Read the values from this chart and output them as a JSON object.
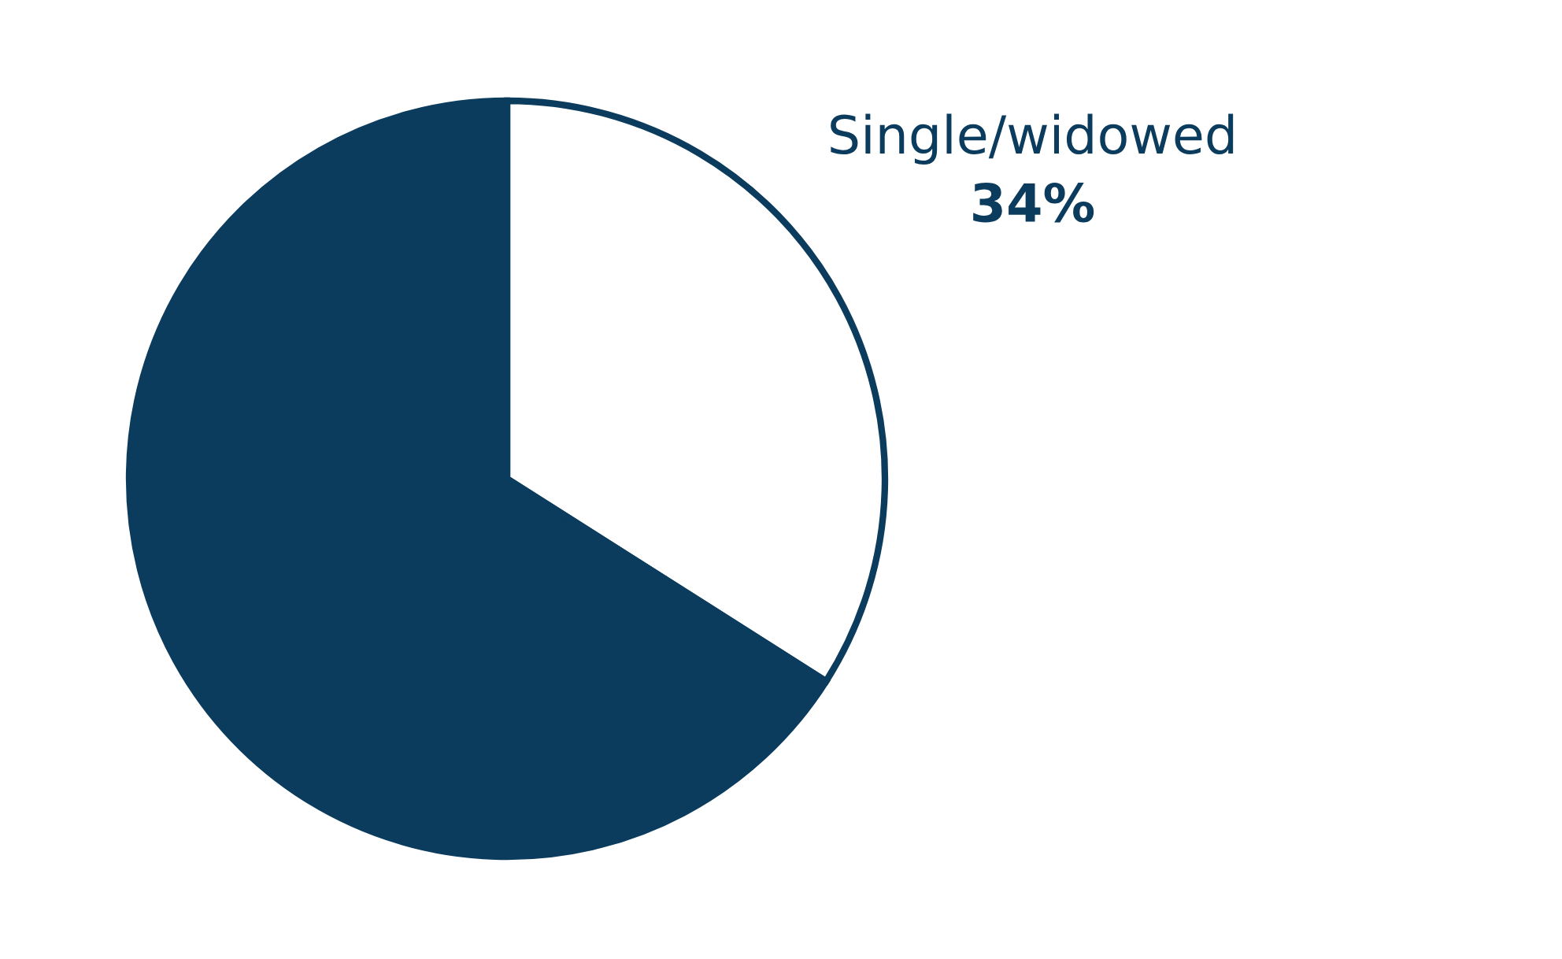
{
  "chart_data": {
    "type": "pie",
    "categories": [
      "Single/widowed",
      null
    ],
    "values": [
      34,
      66
    ],
    "value_labels": [
      "34%",
      null
    ],
    "colors": [
      "#ffffff",
      "#0b3c5d"
    ]
  }
}
